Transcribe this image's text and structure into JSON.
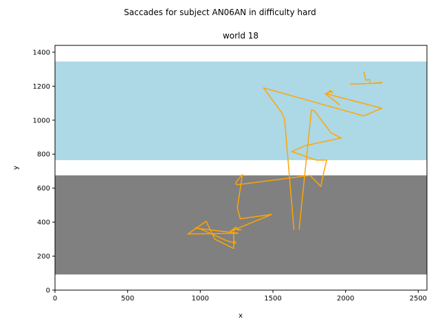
{
  "chart_data": {
    "type": "line",
    "suptitle": "Saccades for subject AN06AN in difficulty hard",
    "title": "world 18",
    "xlabel": "x",
    "ylabel": "y",
    "xlim": [
      0,
      2560
    ],
    "ylim": [
      0,
      1440
    ],
    "xticks": [
      0,
      500,
      1000,
      1500,
      2000,
      2500
    ],
    "yticks": [
      0,
      200,
      400,
      600,
      800,
      1000,
      1200,
      1400
    ],
    "grid": false,
    "regions": [
      {
        "name": "sky",
        "y_from": 765,
        "y_to": 1345,
        "color": "#add8e6"
      },
      {
        "name": "ground",
        "y_from": 92,
        "y_to": 675,
        "color": "#808080"
      }
    ],
    "series": [
      {
        "color": "#ffa500",
        "x": [
          2125,
          2140,
          2165,
          2170,
          2250,
          2245,
          2030
        ],
        "y": [
          1285,
          1235,
          1240,
          1215,
          1222,
          1218,
          1212
        ],
        "segment": "a"
      },
      {
        "color": "#ffa500",
        "x": [
          1960,
          1860,
          1905,
          1910,
          1895,
          1870,
          2250,
          2125,
          1435,
          1560,
          1580,
          1645
        ],
        "y": [
          1090,
          1155,
          1170,
          1160,
          1175,
          1155,
          1070,
          1025,
          1190,
          1045,
          1005,
          355
        ]
      },
      {
        "color": "#ffa500",
        "x": [
          1680,
          1765,
          1785,
          1900,
          1970,
          1720,
          1630,
          1800,
          1870,
          1850,
          1830,
          1755,
          1255,
          1245,
          1250,
          1290,
          1255,
          1275,
          1490,
          1205,
          1245,
          1255,
          1280,
          1230,
          1230,
          1100,
          1040,
          915,
          1260,
          965,
          1000,
          1185,
          1245,
          1230
        ],
        "y": [
          355,
          1060,
          1055,
          925,
          895,
          850,
          815,
          765,
          765,
          695,
          610,
          675,
          620,
          625,
          640,
          680,
          485,
          420,
          445,
          345,
          370,
          355,
          355,
          360,
          245,
          300,
          405,
          330,
          335,
          365,
          360,
          290,
          275,
          295
        ]
      }
    ]
  }
}
